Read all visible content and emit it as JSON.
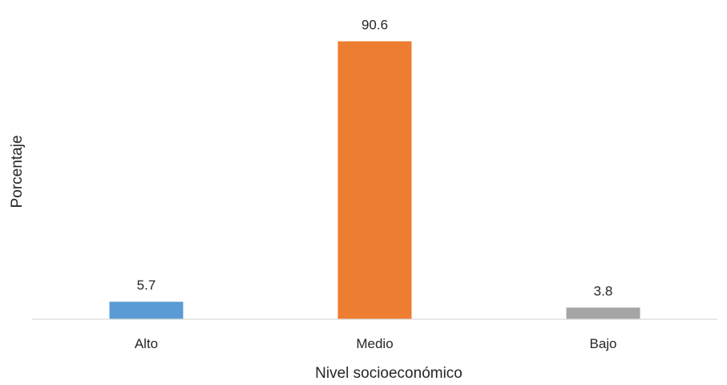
{
  "chart_data": {
    "type": "bar",
    "title": "",
    "xlabel": "Nivel socioeconómico",
    "ylabel": "Porcentaje",
    "categories": [
      "Alto",
      "Medio",
      "Bajo"
    ],
    "values": [
      5.7,
      90.6,
      3.8
    ],
    "value_labels": [
      "5.7",
      "90.6",
      "3.8"
    ],
    "colors": [
      "#5B9BD5",
      "#ED7D31",
      "#A5A5A5"
    ],
    "ylim": [
      0,
      100
    ],
    "grid": false,
    "legend": "none"
  }
}
